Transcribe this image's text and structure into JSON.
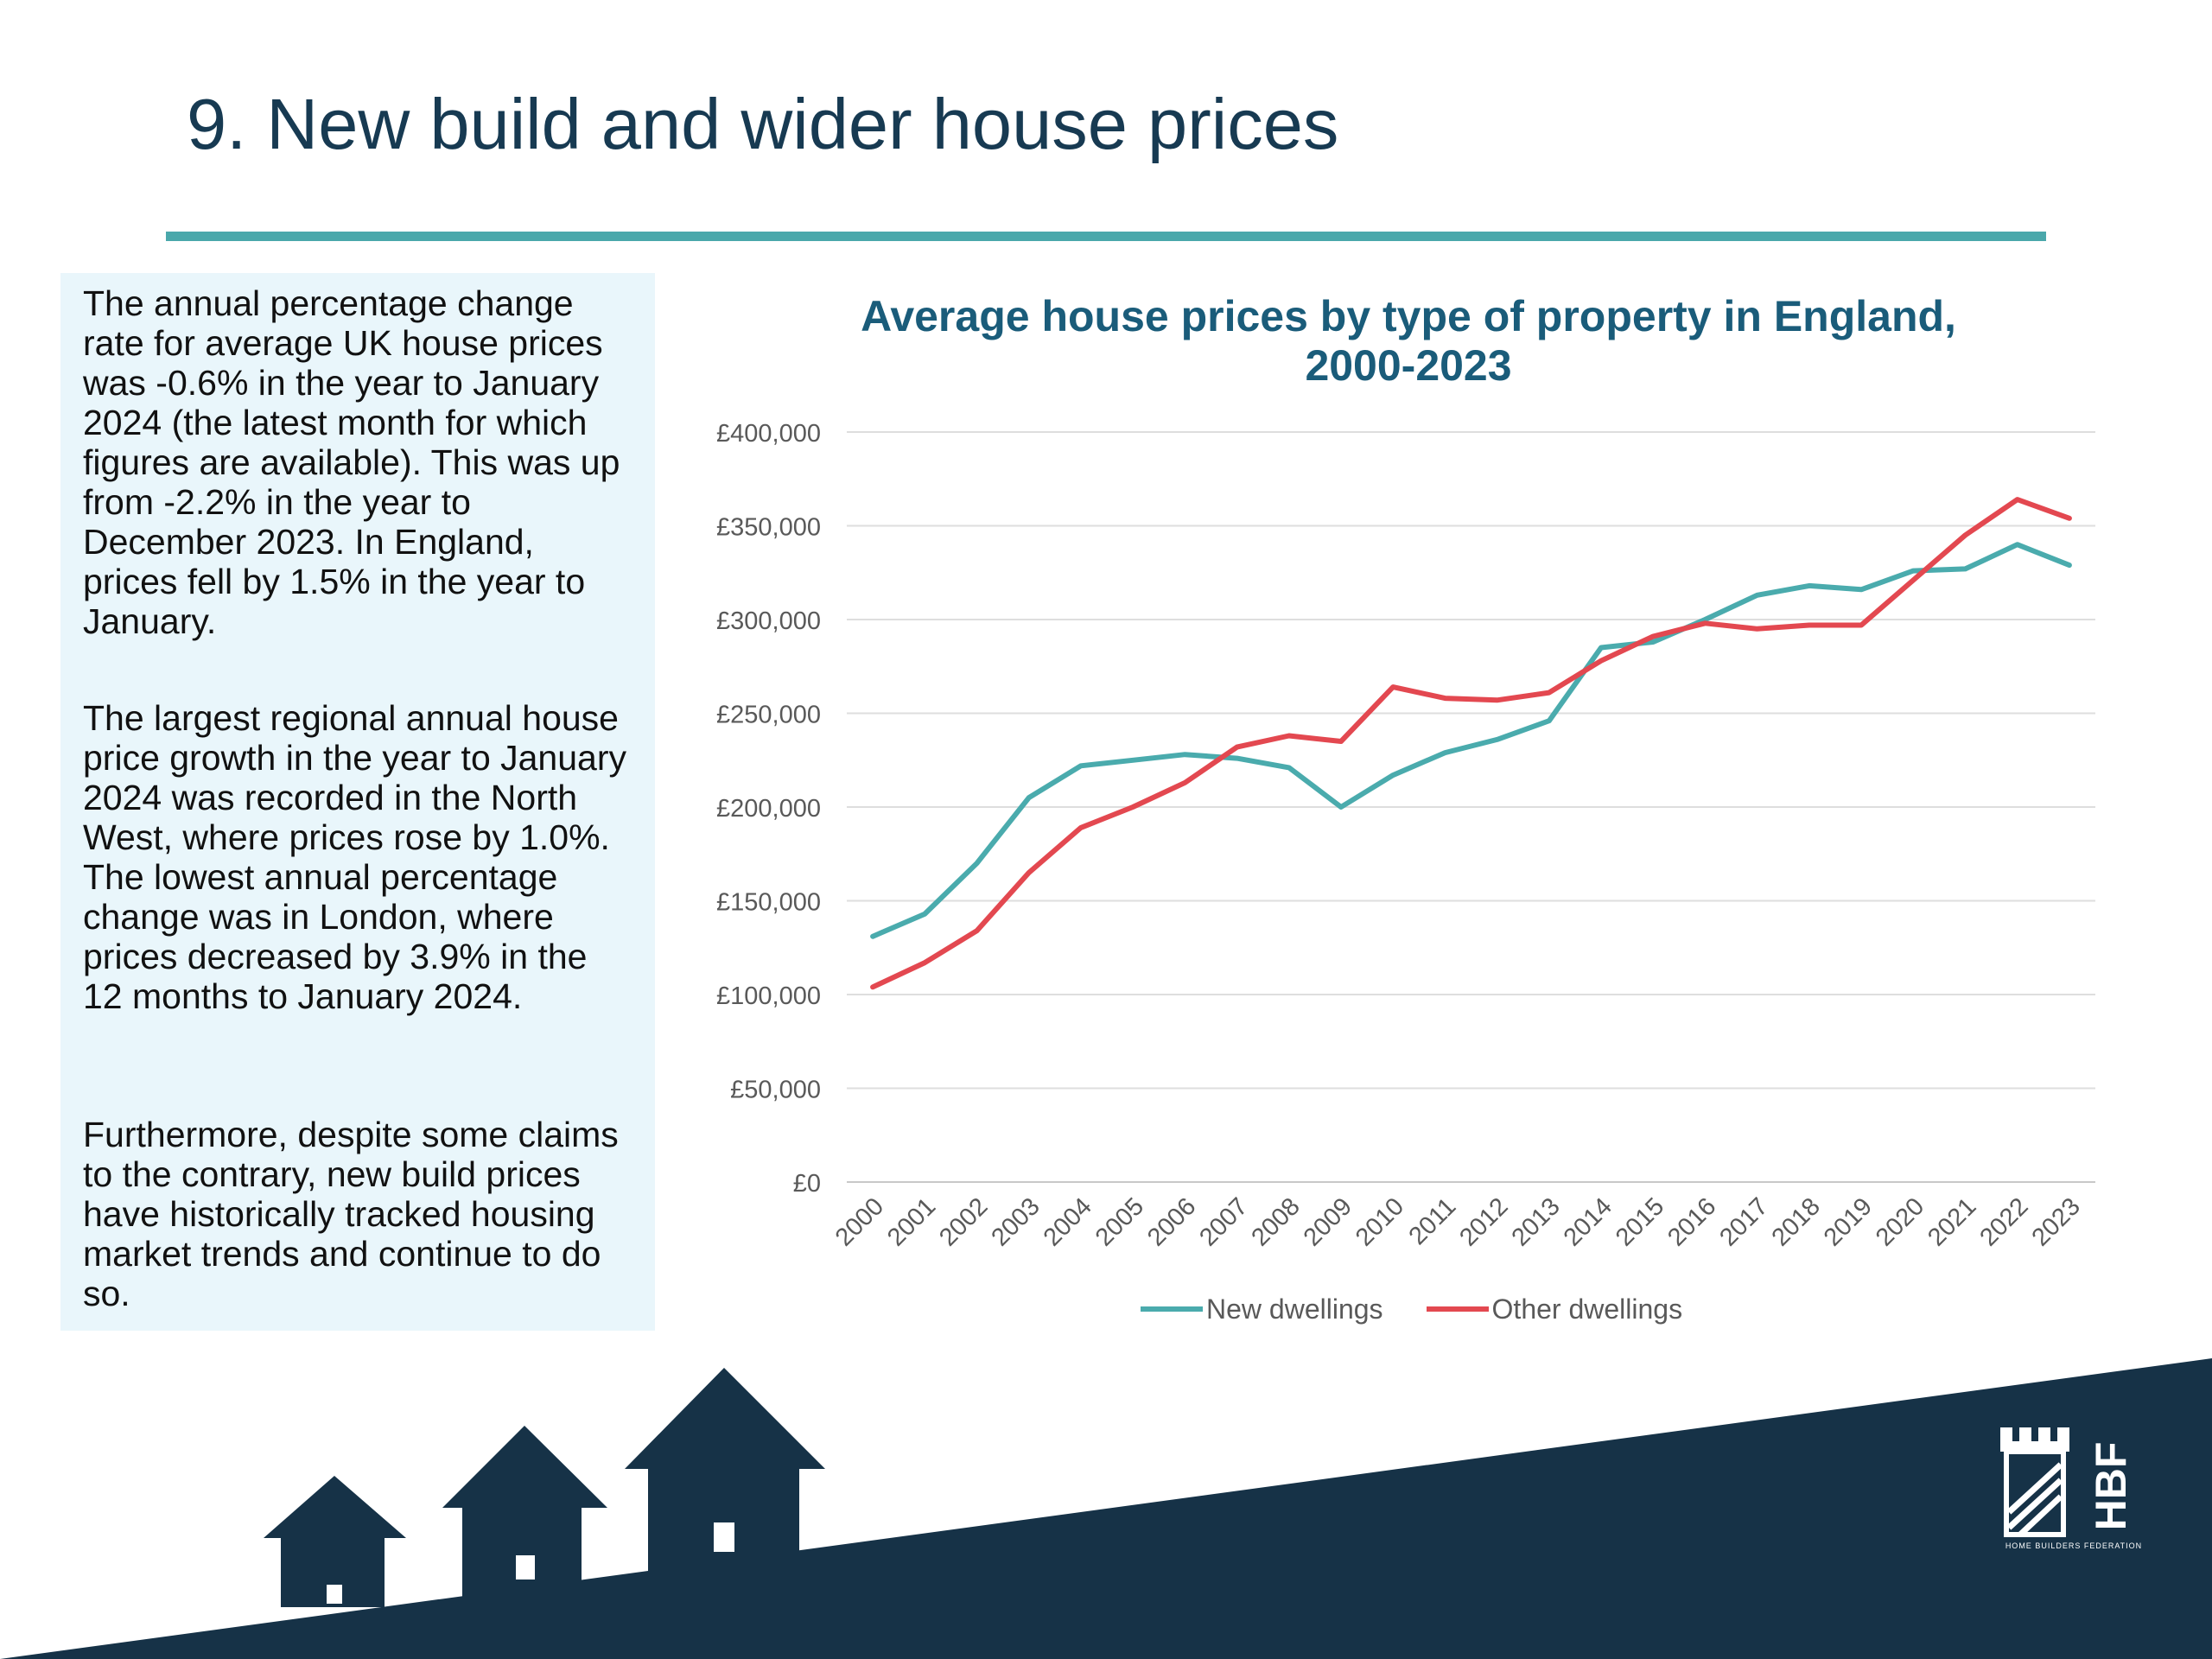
{
  "page": {
    "title": "9. New build and wider house prices"
  },
  "text_panel": {
    "paragraphs": [
      "The annual percentage change rate for average UK house prices was -0.6% in the year to January 2024 (the latest month for which figures are available). This was up from -2.2% in the year to December 2023. In England, prices fell by 1.5% in the year to January.",
      "The largest regional annual house price growth in the year to January 2024 was recorded in the North West, where prices rose by 1.0%. The lowest annual percentage change was in London, where prices decreased by 3.9% in the 12 months to January 2024.",
      "Furthermore, despite some claims to the contrary, new build prices have historically tracked housing market trends and continue to do so."
    ]
  },
  "chart_data": {
    "type": "line",
    "title": "Average house prices by type of property in England, 2000-2023",
    "x": [
      "2000",
      "2001",
      "2002",
      "2003",
      "2004",
      "2005",
      "2006",
      "2007",
      "2008",
      "2009",
      "2010",
      "2011",
      "2012",
      "2013",
      "2014",
      "2015",
      "2016",
      "2017",
      "2018",
      "2019",
      "2020",
      "2021",
      "2022",
      "2023"
    ],
    "yticks": [
      "£0",
      "£50,000",
      "£100,000",
      "£150,000",
      "£200,000",
      "£250,000",
      "£300,000",
      "£350,000",
      "£400,000"
    ],
    "ylim": [
      0,
      400000
    ],
    "grid": true,
    "legend": "bottom",
    "series": [
      {
        "name": "New dwellings",
        "color": "#4aabad",
        "values": [
          131000,
          143000,
          170000,
          205000,
          222000,
          225000,
          228000,
          226000,
          221000,
          200000,
          217000,
          229000,
          236000,
          246000,
          285000,
          288000,
          300000,
          313000,
          318000,
          316000,
          326000,
          327000,
          340000,
          329000
        ]
      },
      {
        "name": "Other dwellings",
        "color": "#e34850",
        "values": [
          104000,
          117000,
          134000,
          165000,
          189000,
          200000,
          213000,
          232000,
          238000,
          235000,
          264000,
          258000,
          257000,
          261000,
          278000,
          291000,
          298000,
          295000,
          297000,
          297000,
          321000,
          345000,
          364000,
          354000
        ]
      }
    ]
  },
  "brand": {
    "logo_text": "HBF",
    "logo_subtext": "HOME BUILDERS FEDERATION",
    "navy": "#163247",
    "teal": "#4aa8ab"
  }
}
